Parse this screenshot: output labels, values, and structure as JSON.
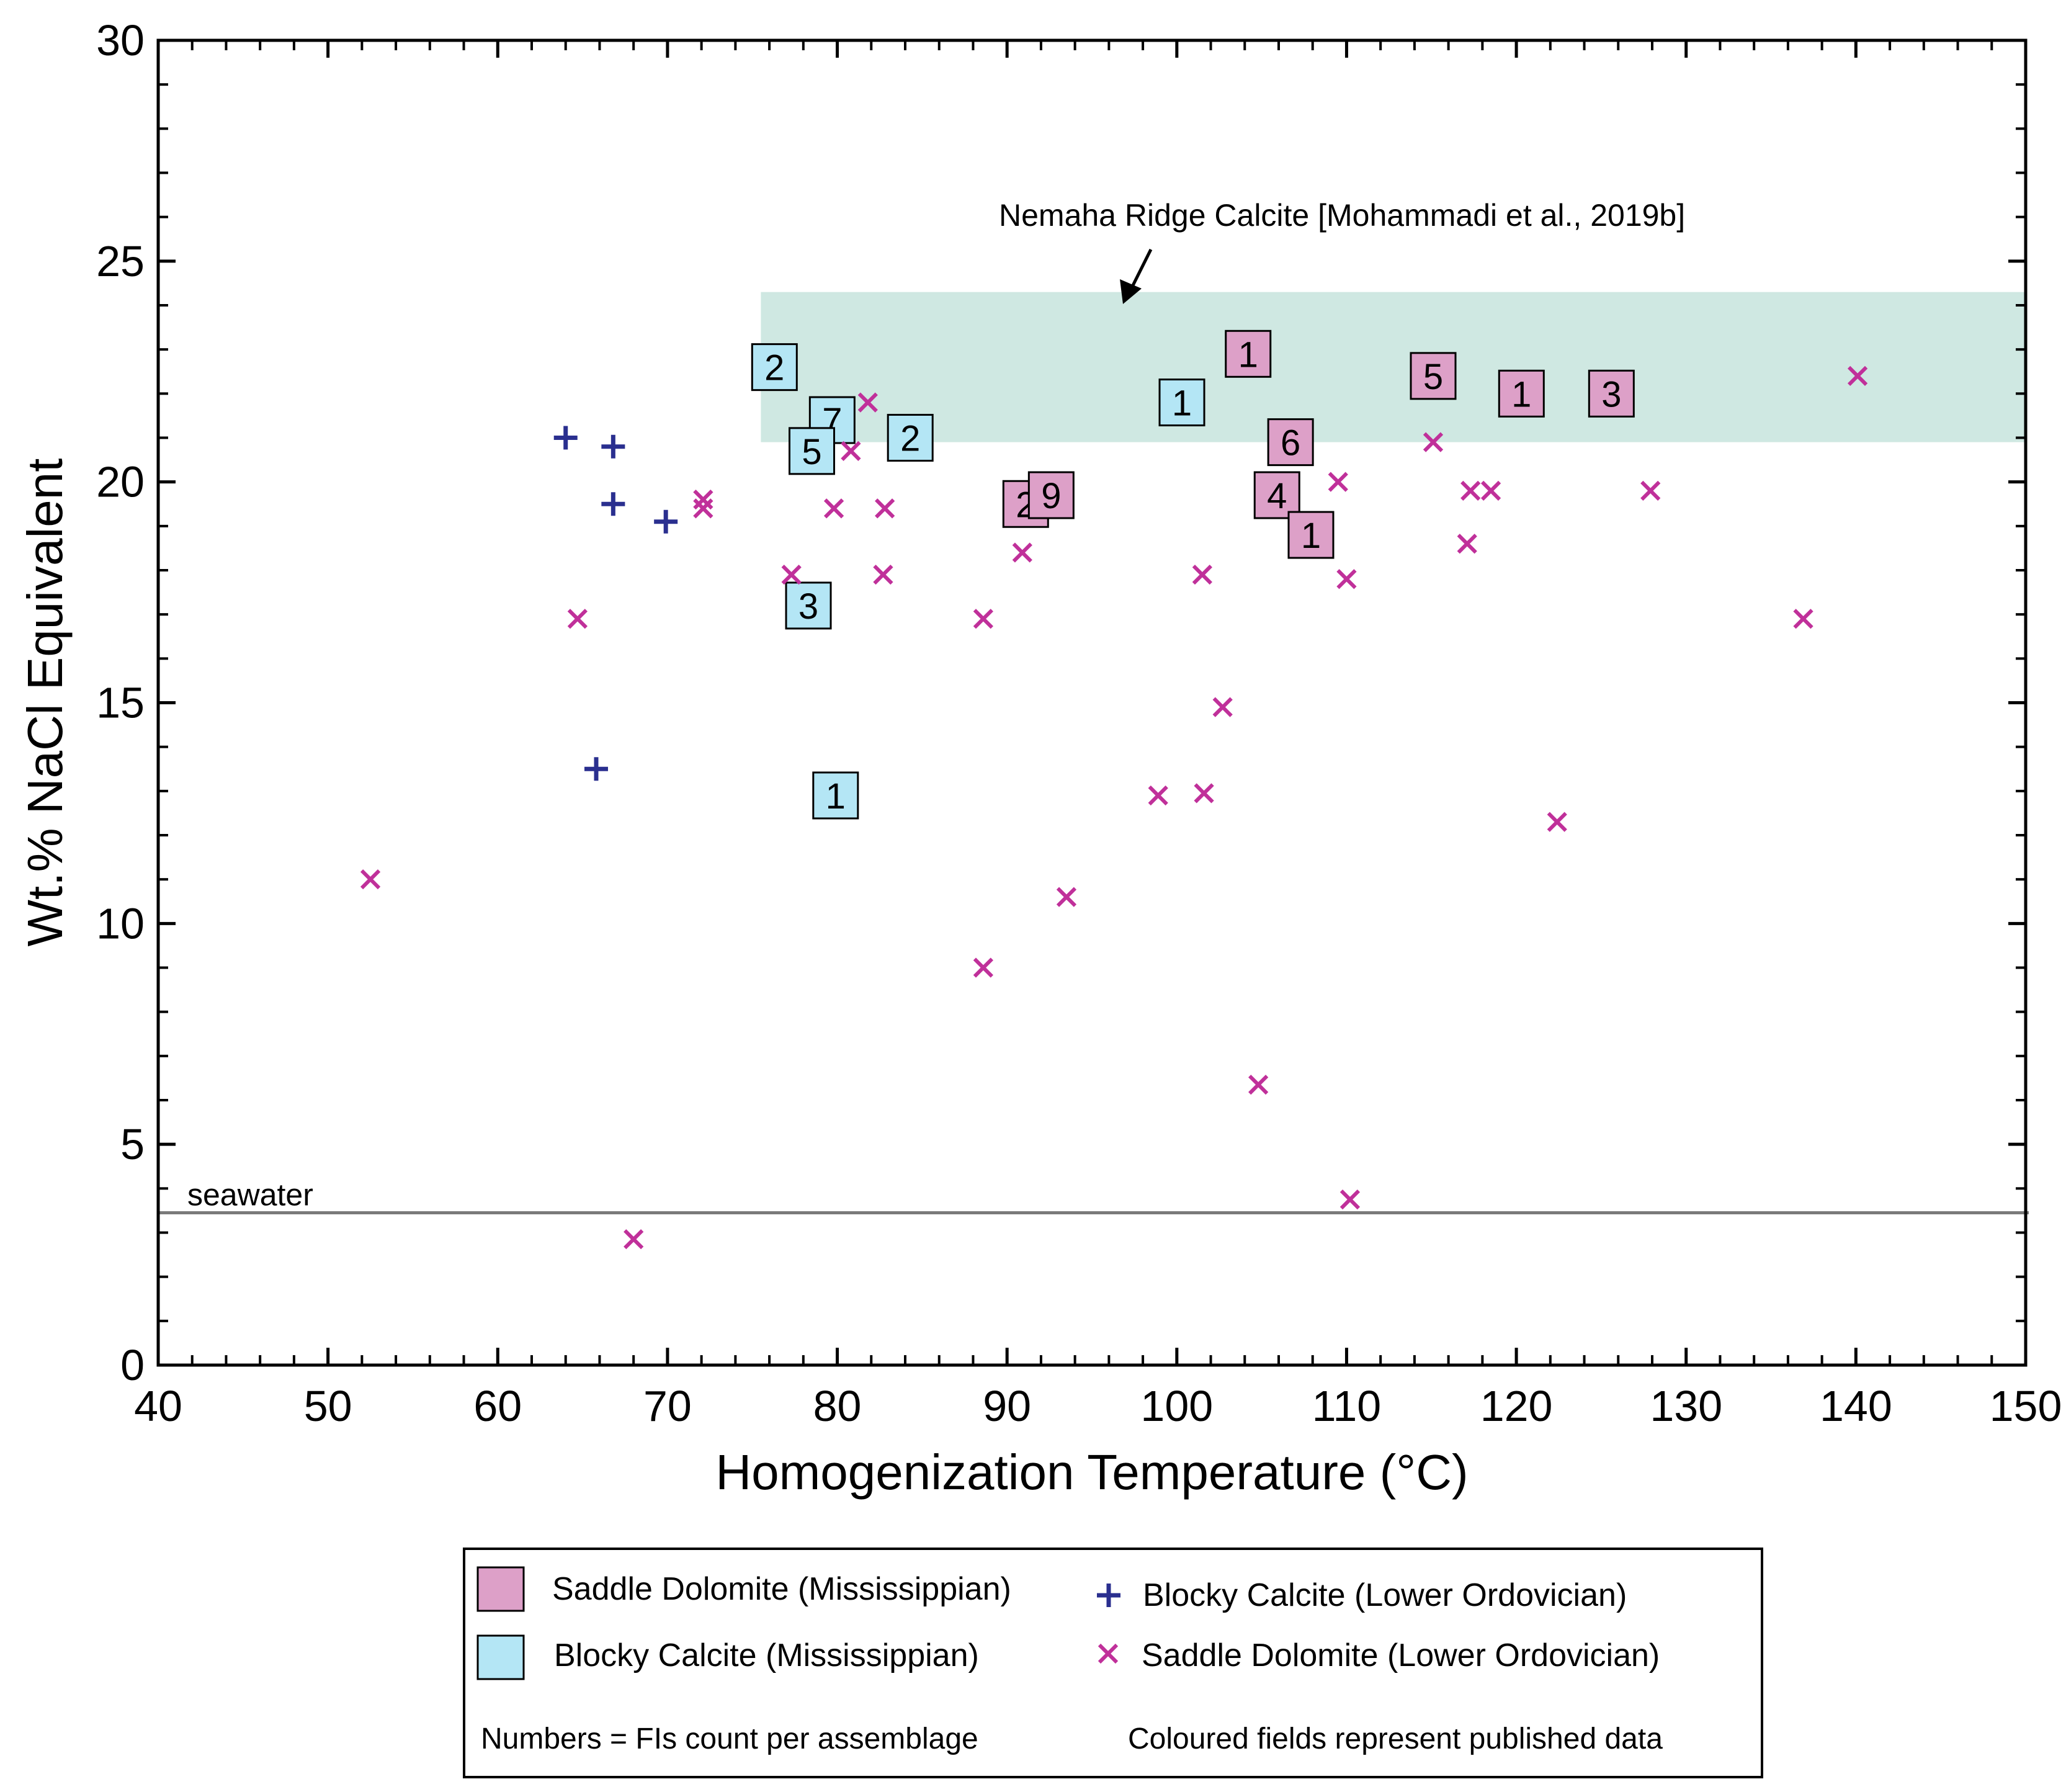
{
  "chart_data": {
    "type": "scatter",
    "xlabel": "Homogenization Temperature (°C)",
    "ylabel": "Wt.% NaCl Equivalent",
    "xlim": [
      40,
      150
    ],
    "ylim": [
      0,
      30
    ],
    "x_ticks": [
      40,
      50,
      60,
      70,
      80,
      90,
      100,
      110,
      120,
      130,
      140,
      150
    ],
    "y_ticks": [
      0,
      5,
      10,
      15,
      20,
      25,
      30
    ],
    "grid": false,
    "colors": {
      "saddle_dolomite_fill": "#dda0c8",
      "blocky_calcite_fill": "#b4e6f5",
      "blocky_calcite_marker": "#2a2f8f",
      "saddle_dolomite_marker": "#c0309a",
      "field": "#cfe8e2",
      "seawater_line": "#7a7a7a"
    },
    "shaded_field": {
      "label": "Nemaha Ridge Calcite [Mohammadi et al., 2019b]",
      "x_range": [
        75.5,
        150
      ],
      "y_range": [
        20.9,
        24.3
      ],
      "arrow_to": [
        97,
        24.1
      ]
    },
    "reference_line": {
      "label": "seawater",
      "y": 3.45
    },
    "series": [
      {
        "name": "Saddle Dolomite (Mississippian)",
        "marker": "labeled-square",
        "points": [
          {
            "x": 104.2,
            "y": 22.9,
            "label": "1"
          },
          {
            "x": 115.1,
            "y": 22.4,
            "label": "5"
          },
          {
            "x": 120.3,
            "y": 22.0,
            "label": "1"
          },
          {
            "x": 125.6,
            "y": 22.0,
            "label": "3"
          },
          {
            "x": 106.7,
            "y": 20.9,
            "label": "6"
          },
          {
            "x": 105.9,
            "y": 19.7,
            "label": "4"
          },
          {
            "x": 107.9,
            "y": 18.8,
            "label": "1"
          },
          {
            "x": 91.1,
            "y": 19.5,
            "label": "2"
          },
          {
            "x": 92.6,
            "y": 19.7,
            "label": "9"
          }
        ]
      },
      {
        "name": "Blocky Calcite (Mississippian)",
        "marker": "labeled-square",
        "points": [
          {
            "x": 76.3,
            "y": 22.6,
            "label": "2"
          },
          {
            "x": 100.3,
            "y": 21.8,
            "label": "1"
          },
          {
            "x": 79.7,
            "y": 21.4,
            "label": "7"
          },
          {
            "x": 78.5,
            "y": 20.7,
            "label": "5"
          },
          {
            "x": 84.3,
            "y": 21.0,
            "label": "2"
          },
          {
            "x": 78.3,
            "y": 17.2,
            "label": "3"
          },
          {
            "x": 79.9,
            "y": 12.9,
            "label": "1"
          }
        ]
      },
      {
        "name": "Blocky Calcite (Lower Ordovician)",
        "marker": "plus",
        "points": [
          {
            "x": 64.0,
            "y": 21.0
          },
          {
            "x": 66.8,
            "y": 20.8
          },
          {
            "x": 66.8,
            "y": 19.5
          },
          {
            "x": 69.9,
            "y": 19.1
          },
          {
            "x": 65.8,
            "y": 13.5
          }
        ]
      },
      {
        "name": "Saddle Dolomite (Lower Ordovician)",
        "marker": "cross",
        "points": [
          {
            "x": 140.1,
            "y": 22.4
          },
          {
            "x": 81.8,
            "y": 21.8
          },
          {
            "x": 115.1,
            "y": 20.9
          },
          {
            "x": 80.8,
            "y": 20.7
          },
          {
            "x": 109.5,
            "y": 20.0
          },
          {
            "x": 117.3,
            "y": 19.8
          },
          {
            "x": 118.5,
            "y": 19.8
          },
          {
            "x": 127.9,
            "y": 19.8
          },
          {
            "x": 72.1,
            "y": 19.6
          },
          {
            "x": 72.1,
            "y": 19.4
          },
          {
            "x": 79.8,
            "y": 19.4
          },
          {
            "x": 82.8,
            "y": 19.4
          },
          {
            "x": 117.1,
            "y": 18.6
          },
          {
            "x": 90.9,
            "y": 18.4
          },
          {
            "x": 77.3,
            "y": 17.9
          },
          {
            "x": 82.7,
            "y": 17.9
          },
          {
            "x": 101.5,
            "y": 17.9
          },
          {
            "x": 110.0,
            "y": 17.8
          },
          {
            "x": 64.7,
            "y": 16.9
          },
          {
            "x": 88.6,
            "y": 16.9
          },
          {
            "x": 136.9,
            "y": 16.9
          },
          {
            "x": 102.7,
            "y": 14.9
          },
          {
            "x": 98.9,
            "y": 12.9
          },
          {
            "x": 101.6,
            "y": 12.95
          },
          {
            "x": 122.4,
            "y": 12.3
          },
          {
            "x": 93.5,
            "y": 10.6
          },
          {
            "x": 52.5,
            "y": 11.0
          },
          {
            "x": 88.6,
            "y": 9.0
          },
          {
            "x": 104.8,
            "y": 6.35
          },
          {
            "x": 110.2,
            "y": 3.75
          },
          {
            "x": 68.0,
            "y": 2.85
          }
        ]
      }
    ]
  },
  "legend": {
    "items": [
      {
        "label": "Saddle Dolomite (Mississippian)"
      },
      {
        "label": "Blocky Calcite (Mississippian)"
      },
      {
        "label": "Blocky Calcite (Lower Ordovician)"
      },
      {
        "label": "Saddle Dolomite (Lower Ordovician)"
      }
    ],
    "note_left": "Numbers = FIs count per assemblage",
    "note_right": "Coloured fields represent published data"
  }
}
